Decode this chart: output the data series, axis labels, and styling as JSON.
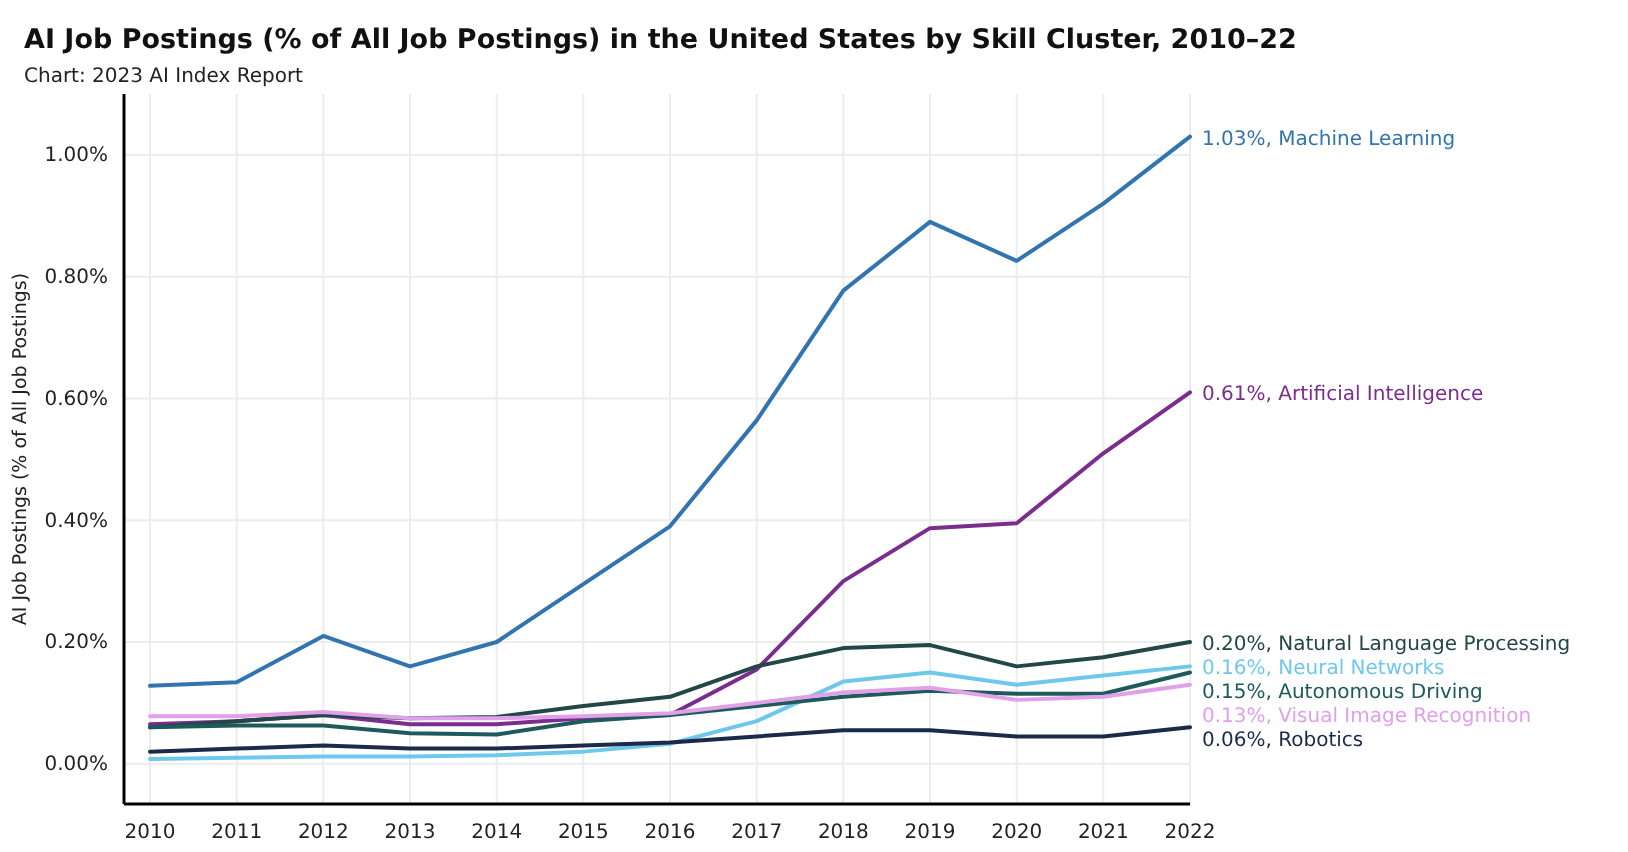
{
  "chart_data": {
    "type": "line",
    "title": "AI Job Postings (% of All Job Postings) in the United States by Skill Cluster, 2010–22",
    "subtitle": "Chart: 2023 AI Index Report",
    "ylabel": "AI Job Postings (% of All Job Postings)",
    "x": [
      2010,
      2011,
      2012,
      2013,
      2014,
      2015,
      2016,
      2017,
      2018,
      2019,
      2020,
      2021,
      2022
    ],
    "series": [
      {
        "name": "1.03%, Machine Learning",
        "color": "#3274b0",
        "values": [
          0.128,
          0.134,
          0.21,
          0.16,
          0.2,
          0.295,
          0.39,
          0.564,
          0.777,
          0.89,
          0.826,
          0.92,
          1.03
        ]
      },
      {
        "name": "0.61%, Artificial Intelligence",
        "color": "#7b2d8e",
        "values": [
          0.065,
          0.07,
          0.08,
          0.065,
          0.065,
          0.075,
          0.08,
          0.155,
          0.3,
          0.387,
          0.395,
          0.51,
          0.61
        ]
      },
      {
        "name": "0.20%, Natural Language Processing",
        "color": "#234646",
        "values": [
          0.06,
          0.07,
          0.08,
          0.075,
          0.077,
          0.095,
          0.11,
          0.16,
          0.19,
          0.195,
          0.16,
          0.175,
          0.2
        ]
      },
      {
        "name": "0.16%, Neural Networks",
        "color": "#6fc8ec",
        "values": [
          0.008,
          0.01,
          0.012,
          0.012,
          0.014,
          0.02,
          0.033,
          0.07,
          0.135,
          0.15,
          0.13,
          0.145,
          0.16
        ]
      },
      {
        "name": "0.15%, Autonomous Driving",
        "color": "#1e5a5a",
        "values": [
          0.06,
          0.063,
          0.063,
          0.05,
          0.048,
          0.07,
          0.08,
          0.095,
          0.11,
          0.12,
          0.115,
          0.115,
          0.15
        ]
      },
      {
        "name": "0.13%, Visual Image Recognition",
        "color": "#e0a0ea",
        "values": [
          0.078,
          0.078,
          0.085,
          0.075,
          0.075,
          0.078,
          0.083,
          0.1,
          0.117,
          0.125,
          0.105,
          0.11,
          0.13
        ]
      },
      {
        "name": "0.06%, Robotics",
        "color": "#1c2a4a",
        "values": [
          0.02,
          0.025,
          0.03,
          0.025,
          0.025,
          0.03,
          0.035,
          0.045,
          0.055,
          0.055,
          0.045,
          0.045,
          0.06
        ]
      }
    ],
    "xlim": [
      2009.7,
      2022
    ],
    "xticks": [
      2010,
      2011,
      2012,
      2013,
      2014,
      2015,
      2016,
      2017,
      2018,
      2019,
      2020,
      2021,
      2022
    ],
    "ylim": [
      -0.066,
      1.1
    ],
    "yticks": [
      {
        "value": 0,
        "label": "0.00%"
      },
      {
        "value": 0.2,
        "label": "0.20%"
      },
      {
        "value": 0.4,
        "label": "0.40%"
      },
      {
        "value": 0.6,
        "label": "0.60%"
      },
      {
        "value": 0.8,
        "label": "0.80%"
      },
      {
        "value": 1,
        "label": "1.00%"
      }
    ],
    "grid": true,
    "line_style": "solid",
    "marker": "none"
  }
}
